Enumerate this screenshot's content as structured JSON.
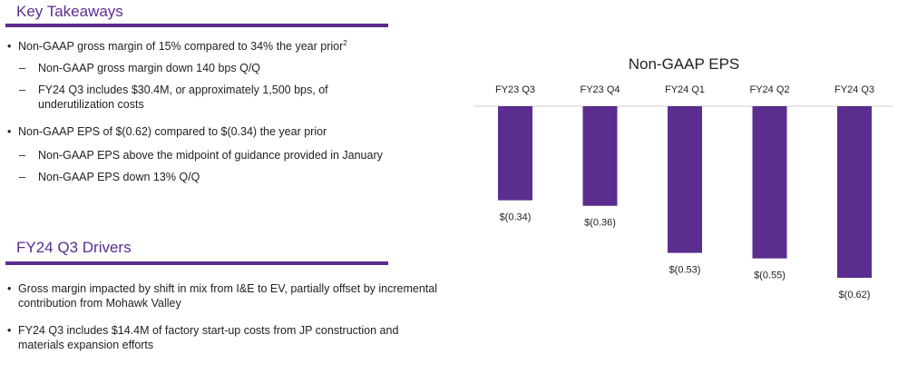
{
  "key_takeaways": {
    "title": "Key Takeaways",
    "bullets": [
      {
        "text": "Non-GAAP gross margin of 15% compared to 34% the year prior",
        "footnote": "2",
        "sub": [
          "Non-GAAP gross margin down 140 bps Q/Q",
          "FY24 Q3 includes $30.4M, or approximately 1,500 bps, of underutilization costs"
        ]
      },
      {
        "text": "Non-GAAP EPS of $(0.62) compared to $(0.34) the year prior",
        "sub": [
          "Non-GAAP EPS above the midpoint of guidance provided in January",
          "Non-GAAP EPS down 13% Q/Q"
        ]
      }
    ]
  },
  "drivers": {
    "title": "FY24 Q3 Drivers",
    "bullets": [
      "Gross margin impacted by shift in mix from I&E to EV, partially offset by incremental contribution from Mohawk Valley",
      "FY24 Q3 includes $14.4M of factory start-up costs from JP construction and materials expansion efforts"
    ]
  },
  "colors": {
    "accent": "#5b2d8e",
    "bar": "#5b2d8e",
    "axis": "#cccccc"
  },
  "chart_data": {
    "type": "bar",
    "title": "Non-GAAP EPS",
    "categories": [
      "FY23 Q3",
      "FY23 Q4",
      "FY24 Q1",
      "FY24 Q2",
      "FY24 Q3"
    ],
    "values": [
      -0.34,
      -0.36,
      -0.53,
      -0.55,
      -0.62
    ],
    "value_labels": [
      "$(0.34)",
      "$(0.36)",
      "$(0.53)",
      "$(0.55)",
      "$(0.62)"
    ],
    "xlabel": "",
    "ylabel": "",
    "ylim": [
      -0.62,
      0
    ],
    "grid": false,
    "legend": "none"
  }
}
